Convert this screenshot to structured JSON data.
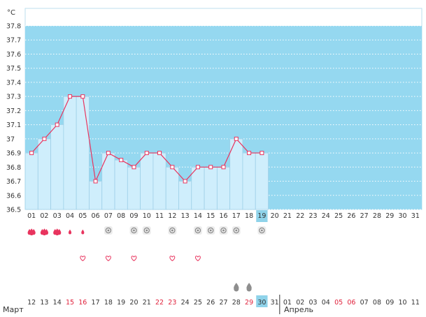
{
  "unit": "°C",
  "cycle_days": [
    "01",
    "02",
    "03",
    "04",
    "05",
    "06",
    "07",
    "08",
    "09",
    "10",
    "11",
    "12",
    "13",
    "14",
    "15",
    "16",
    "17",
    "18",
    "19",
    "20",
    "21",
    "22",
    "23",
    "24",
    "25",
    "26",
    "27",
    "28",
    "29",
    "30",
    "31"
  ],
  "current_cycle_day_index": 18,
  "dates": [
    {
      "d": "12",
      "red": false
    },
    {
      "d": "13",
      "red": false
    },
    {
      "d": "14",
      "red": false
    },
    {
      "d": "15",
      "red": true
    },
    {
      "d": "16",
      "red": true
    },
    {
      "d": "17",
      "red": false
    },
    {
      "d": "18",
      "red": false
    },
    {
      "d": "19",
      "red": false
    },
    {
      "d": "20",
      "red": false
    },
    {
      "d": "21",
      "red": false
    },
    {
      "d": "22",
      "red": true
    },
    {
      "d": "23",
      "red": true
    },
    {
      "d": "24",
      "red": false
    },
    {
      "d": "25",
      "red": false
    },
    {
      "d": "26",
      "red": false
    },
    {
      "d": "27",
      "red": false
    },
    {
      "d": "28",
      "red": false
    },
    {
      "d": "29",
      "red": true
    },
    {
      "d": "30",
      "red": false
    },
    {
      "d": "31",
      "red": false
    },
    {
      "d": "01",
      "red": false
    },
    {
      "d": "02",
      "red": false
    },
    {
      "d": "03",
      "red": false
    },
    {
      "d": "04",
      "red": false
    },
    {
      "d": "05",
      "red": true
    },
    {
      "d": "06",
      "red": true
    },
    {
      "d": "07",
      "red": false
    },
    {
      "d": "08",
      "red": false
    },
    {
      "d": "09",
      "red": false
    },
    {
      "d": "10",
      "red": false
    },
    {
      "d": "11",
      "red": false
    }
  ],
  "current_date_index": 18,
  "months": {
    "first": "Март",
    "second": "Апрель"
  },
  "chart_data": {
    "type": "line",
    "x": [
      1,
      2,
      3,
      4,
      5,
      6,
      7,
      8,
      9,
      10,
      11,
      12,
      13,
      14,
      15,
      16,
      17,
      18,
      19
    ],
    "values": [
      36.9,
      37.0,
      37.1,
      37.3,
      37.3,
      36.7,
      36.9,
      36.85,
      36.8,
      36.9,
      36.9,
      36.8,
      36.7,
      36.8,
      36.8,
      36.8,
      37.0,
      36.9,
      36.9
    ],
    "ylim": [
      36.5,
      37.8
    ],
    "y_ticks": [
      "36.5",
      "36.6",
      "36.7",
      "36.8",
      "36.9",
      "37",
      "37.1",
      "37.2",
      "37.3",
      "37.4",
      "37.5",
      "37.6",
      "37.7",
      "37.8"
    ],
    "grid": true
  },
  "markers": {
    "bleeding": [
      {
        "day": 1,
        "level": 3
      },
      {
        "day": 2,
        "level": 3
      },
      {
        "day": 3,
        "level": 3
      },
      {
        "day": 4,
        "level": 1
      },
      {
        "day": 5,
        "level": 1
      }
    ],
    "mucus_days": [
      7,
      9,
      10,
      12,
      14,
      15,
      16,
      17,
      19
    ],
    "heart_days": [
      5,
      7,
      9,
      12,
      14
    ],
    "drop_days": [
      17,
      18
    ]
  },
  "colors": {
    "plot_bg": "#95d8f0",
    "bar_fill": "#cfeefc",
    "bar_stroke": "#9fd0e8",
    "line": "#e8345e",
    "highlight": "#8fd3ea",
    "red_text": "#e0223c"
  },
  "icons": {
    "bleeding": "blood-drop-icon",
    "mucus": "mucus-circle-icon",
    "heart": "heart-icon",
    "drop": "grey-drop-icon"
  }
}
